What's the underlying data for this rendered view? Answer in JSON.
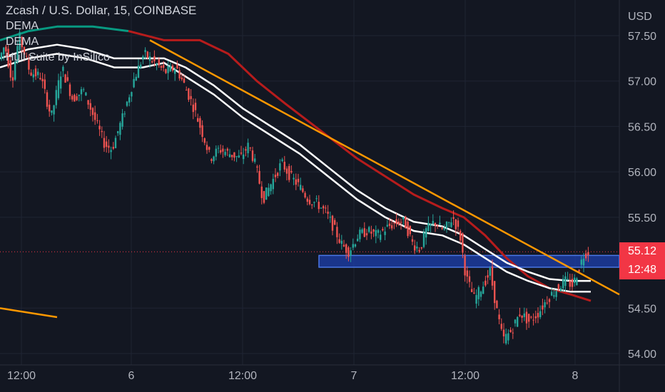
{
  "chart_data": {
    "type": "candlestick",
    "title": "Zcash / U.S. Dollar, 15, COINBASE",
    "currency": "USD",
    "indicators": [
      "DEMA",
      "DEMA",
      "Hull Suite by InSilico"
    ],
    "y_ticks": [
      "57.50",
      "57.00",
      "56.50",
      "56.00",
      "55.50",
      "54.50",
      "54.00"
    ],
    "ylim": [
      54.0,
      57.6
    ],
    "x_ticks": [
      "12:00",
      "6",
      "12:00",
      "7",
      "12:00",
      "8"
    ],
    "last_price": "55.12",
    "countdown": "12:48",
    "colors": {
      "background": "#131722",
      "up": "#26a69a",
      "down": "#ef5350",
      "hull_down": "#b71c1c",
      "hull_up": "#089981",
      "dema": "#ffffff",
      "trendline": "#ff9800",
      "zone_fill": "#1e40af",
      "zone_border": "#4a77e8",
      "last_price_line": "#f23645"
    },
    "support_zone": [
      54.95,
      55.08
    ],
    "path_points": [
      [
        0,
        57.2
      ],
      [
        10,
        57.4
      ],
      [
        20,
        57.0
      ],
      [
        30,
        57.5
      ],
      [
        45,
        57.1
      ],
      [
        60,
        57.05
      ],
      [
        75,
        56.6
      ],
      [
        90,
        57.15
      ],
      [
        105,
        56.8
      ],
      [
        120,
        56.9
      ],
      [
        135,
        56.6
      ],
      [
        150,
        56.3
      ],
      [
        160,
        56.25
      ],
      [
        175,
        56.6
      ],
      [
        190,
        57.0
      ],
      [
        205,
        57.3
      ],
      [
        220,
        57.2
      ],
      [
        235,
        57.1
      ],
      [
        250,
        57.15
      ],
      [
        262,
        56.95
      ],
      [
        275,
        56.7
      ],
      [
        288,
        56.4
      ],
      [
        298,
        56.15
      ],
      [
        310,
        56.25
      ],
      [
        325,
        56.2
      ],
      [
        340,
        56.15
      ],
      [
        352,
        56.3
      ],
      [
        362,
        56.05
      ],
      [
        372,
        55.7
      ],
      [
        385,
        55.9
      ],
      [
        398,
        56.1
      ],
      [
        410,
        55.95
      ],
      [
        422,
        55.85
      ],
      [
        435,
        55.7
      ],
      [
        448,
        55.65
      ],
      [
        460,
        55.55
      ],
      [
        470,
        55.4
      ],
      [
        482,
        55.2
      ],
      [
        492,
        55.12
      ],
      [
        505,
        55.3
      ],
      [
        518,
        55.35
      ],
      [
        532,
        55.3
      ],
      [
        548,
        55.4
      ],
      [
        562,
        55.45
      ],
      [
        570,
        55.45
      ],
      [
        582,
        55.2
      ],
      [
        592,
        55.15
      ],
      [
        600,
        55.35
      ],
      [
        612,
        55.45
      ],
      [
        625,
        55.35
      ],
      [
        638,
        55.5
      ],
      [
        648,
        55.3
      ],
      [
        656,
        54.85
      ],
      [
        668,
        54.6
      ],
      [
        680,
        54.75
      ],
      [
        690,
        54.9
      ],
      [
        700,
        54.45
      ],
      [
        708,
        54.15
      ],
      [
        720,
        54.25
      ],
      [
        732,
        54.45
      ],
      [
        745,
        54.35
      ],
      [
        758,
        54.45
      ],
      [
        770,
        54.6
      ],
      [
        782,
        54.7
      ],
      [
        795,
        54.8
      ],
      [
        806,
        54.75
      ],
      [
        815,
        54.95
      ],
      [
        822,
        55.1
      ],
      [
        828,
        55.12
      ]
    ],
    "hull_points": [
      [
        0,
        57.45
      ],
      [
        40,
        57.55
      ],
      [
        80,
        57.6
      ],
      [
        130,
        57.6
      ],
      [
        180,
        57.55
      ],
      [
        230,
        57.45
      ],
      [
        280,
        57.45
      ],
      [
        320,
        57.3
      ],
      [
        360,
        57.0
      ],
      [
        400,
        56.75
      ],
      [
        450,
        56.45
      ],
      [
        500,
        56.15
      ],
      [
        540,
        55.95
      ],
      [
        580,
        55.75
      ],
      [
        620,
        55.6
      ],
      [
        650,
        55.5
      ],
      [
        680,
        55.3
      ],
      [
        710,
        55.05
      ],
      [
        740,
        54.85
      ],
      [
        770,
        54.72
      ],
      [
        800,
        54.65
      ],
      [
        828,
        54.58
      ]
    ],
    "dema1_points": [
      [
        0,
        57.25
      ],
      [
        40,
        57.35
      ],
      [
        80,
        57.4
      ],
      [
        120,
        57.35
      ],
      [
        160,
        57.25
      ],
      [
        200,
        57.25
      ],
      [
        230,
        57.25
      ],
      [
        260,
        57.15
      ],
      [
        300,
        56.95
      ],
      [
        340,
        56.7
      ],
      [
        380,
        56.5
      ],
      [
        420,
        56.3
      ],
      [
        460,
        56.05
      ],
      [
        500,
        55.8
      ],
      [
        540,
        55.6
      ],
      [
        580,
        55.45
      ],
      [
        620,
        55.4
      ],
      [
        650,
        55.3
      ],
      [
        680,
        55.15
      ],
      [
        710,
        55.0
      ],
      [
        740,
        54.9
      ],
      [
        770,
        54.82
      ],
      [
        800,
        54.8
      ],
      [
        828,
        54.8
      ]
    ],
    "dema2_points": [
      [
        0,
        57.15
      ],
      [
        40,
        57.25
      ],
      [
        80,
        57.3
      ],
      [
        120,
        57.25
      ],
      [
        160,
        57.15
      ],
      [
        200,
        57.15
      ],
      [
        230,
        57.2
      ],
      [
        260,
        57.05
      ],
      [
        300,
        56.85
      ],
      [
        340,
        56.6
      ],
      [
        380,
        56.4
      ],
      [
        420,
        56.2
      ],
      [
        460,
        55.95
      ],
      [
        500,
        55.7
      ],
      [
        540,
        55.5
      ],
      [
        580,
        55.35
      ],
      [
        620,
        55.3
      ],
      [
        650,
        55.2
      ],
      [
        680,
        55.05
      ],
      [
        710,
        54.9
      ],
      [
        740,
        54.8
      ],
      [
        770,
        54.72
      ],
      [
        800,
        54.68
      ],
      [
        828,
        54.68
      ]
    ],
    "trendline_points": [
      [
        210,
        57.45
      ],
      [
        868,
        54.65
      ]
    ],
    "trendline2_points": [
      [
        0,
        54.5
      ],
      [
        80,
        54.4
      ]
    ]
  }
}
